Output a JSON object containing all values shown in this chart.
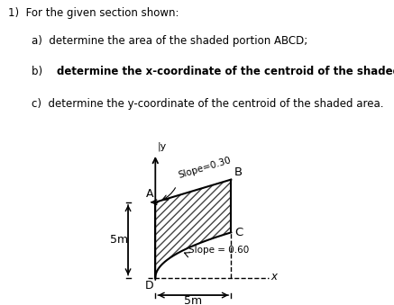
{
  "title_text": "1)  For the given section shown:",
  "item_a": "a)  determine the area of the shaded portion ABCD;",
  "item_b": "b)  determine the x-coordinate of the centroid of the shaded area; and,",
  "item_c": "c)  determine the y-coordinate of the centroid of the shaded area.",
  "A": [
    0,
    5
  ],
  "B": [
    5,
    6.5
  ],
  "C": [
    5,
    3
  ],
  "D": [
    0,
    0
  ],
  "label_5m_vertical": "5m",
  "label_5m_horizontal": "5m",
  "slope_top_label": "Slope=0.30",
  "slope_bottom_label": "Slope = 0.60",
  "background": "#ffffff"
}
